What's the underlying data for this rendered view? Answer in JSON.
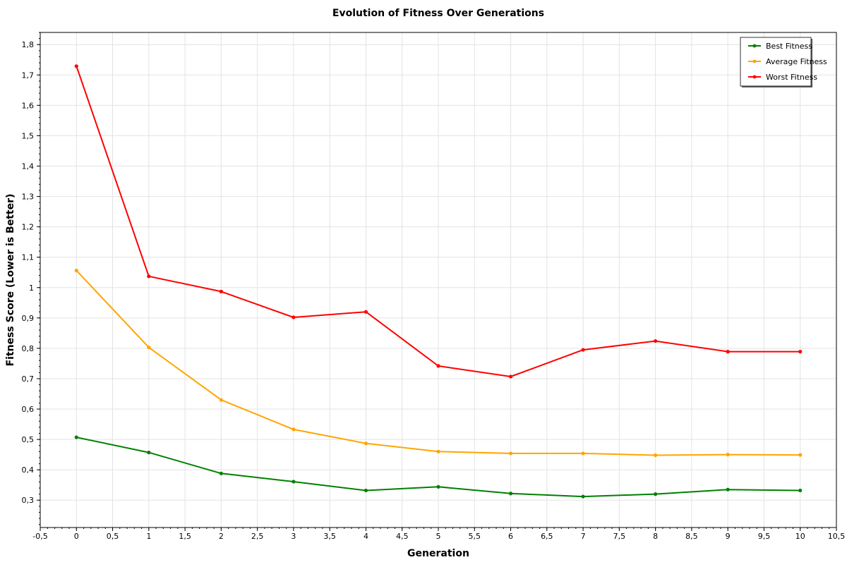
{
  "chart_data": {
    "type": "line",
    "title": "Evolution of Fitness Over Generations",
    "xlabel": "Generation",
    "ylabel": "Fitness Score (Lower is Better)",
    "xlim": [
      -0.5,
      10.5
    ],
    "ylim": [
      0.21,
      1.84
    ],
    "x_ticks": [
      -0.5,
      0,
      0.5,
      1,
      1.5,
      2,
      2.5,
      3,
      3.5,
      4,
      4.5,
      5,
      5.5,
      6,
      6.5,
      7,
      7.5,
      8,
      8.5,
      9,
      9.5,
      10,
      10.5
    ],
    "x_tick_labels": [
      "-0,5",
      "0",
      "0,5",
      "1",
      "1,5",
      "2",
      "2,5",
      "3",
      "3,5",
      "4",
      "4,5",
      "5",
      "5,5",
      "6",
      "6,5",
      "7",
      "7,5",
      "8",
      "8,5",
      "9",
      "9,5",
      "10",
      "10,5"
    ],
    "y_ticks": [
      0.3,
      0.4,
      0.5,
      0.6,
      0.7,
      0.8,
      0.9,
      1.0,
      1.1,
      1.2,
      1.3,
      1.4,
      1.5,
      1.6,
      1.7,
      1.8
    ],
    "y_tick_labels": [
      "0,3",
      "0,4",
      "0,5",
      "0,6",
      "0,7",
      "0,8",
      "0,9",
      "1",
      "1,1",
      "1,2",
      "1,3",
      "1,4",
      "1,5",
      "1,6",
      "1,7",
      "1,8"
    ],
    "grid": true,
    "legend_position": "top-right",
    "x": [
      0,
      1,
      2,
      3,
      4,
      5,
      6,
      7,
      8,
      9,
      10
    ],
    "series": [
      {
        "name": "Best Fitness",
        "color": "#008000",
        "values": [
          0.507,
          0.457,
          0.388,
          0.361,
          0.332,
          0.344,
          0.322,
          0.312,
          0.32,
          0.335,
          0.332
        ]
      },
      {
        "name": "Average Fitness",
        "color": "#FFA500",
        "values": [
          1.056,
          0.803,
          0.63,
          0.533,
          0.487,
          0.46,
          0.454,
          0.454,
          0.448,
          0.45,
          0.449
        ]
      },
      {
        "name": "Worst Fitness",
        "color": "#FF0000",
        "values": [
          1.729,
          1.037,
          0.987,
          0.902,
          0.92,
          0.742,
          0.707,
          0.795,
          0.824,
          0.789,
          0.789
        ]
      }
    ]
  }
}
